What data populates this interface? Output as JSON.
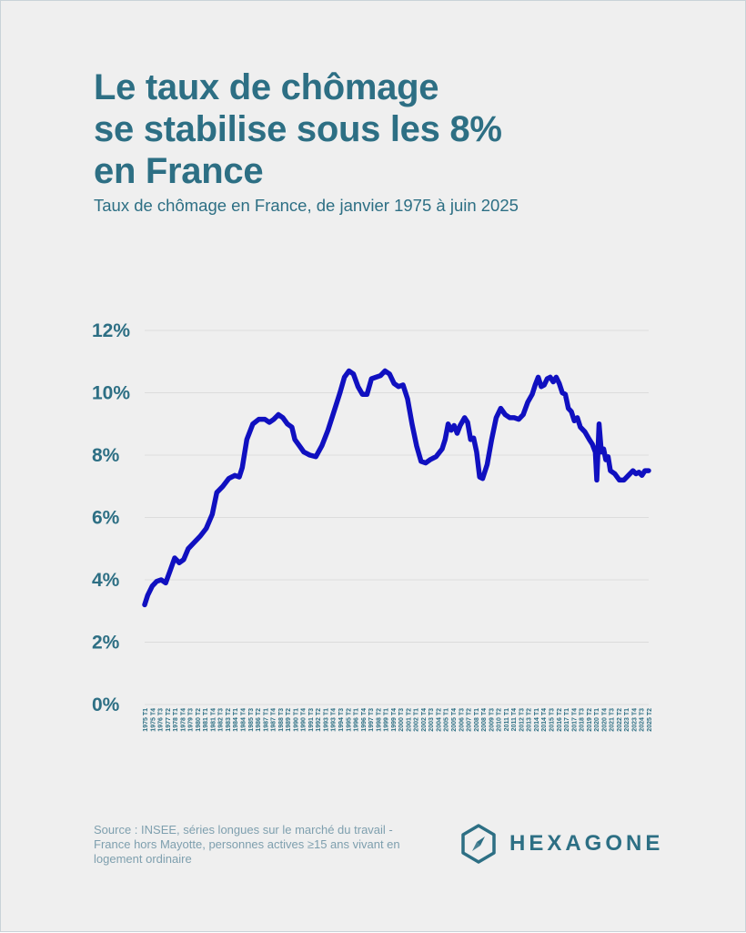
{
  "header": {
    "title_lines": [
      "Le taux de chômage",
      "se stabilise sous les 8%",
      "en France"
    ],
    "subtitle": "Taux de chômage en France, de janvier 1975 à juin 2025"
  },
  "footer": {
    "source_lines": [
      "Source : INSEE, séries longues sur le marché du travail -",
      "France hors Mayotte, personnes actives ≥15 ans vivant en",
      "logement ordinaire"
    ],
    "brand": "HEXAGONE"
  },
  "colors": {
    "title": "#2d6f84",
    "line": "#1010c0",
    "background": "#efefef",
    "source": "#7e9fae"
  },
  "chart_data": {
    "type": "line",
    "title": "",
    "xlabel": "",
    "ylabel": "",
    "ylim": [
      0,
      12
    ],
    "yticks": [
      0,
      2,
      4,
      6,
      8,
      10,
      12
    ],
    "ytick_suffix": "%",
    "grid": "horizontal",
    "x_labels": [
      "1975 T1",
      "1975 T4",
      "1976 T3",
      "1977 T2",
      "1978 T1",
      "1978 T4",
      "1979 T3",
      "1980 T2",
      "1981 T1",
      "1981 T4",
      "1982 T3",
      "1983 T2",
      "1984 T1",
      "1984 T4",
      "1985 T3",
      "1986 T2",
      "1987 T1",
      "1987 T4",
      "1988 T3",
      "1989 T2",
      "1990 T1",
      "1990 T4",
      "1991 T3",
      "1992 T2",
      "1993 T1",
      "1993 T4",
      "1994 T3",
      "1995 T2",
      "1996 T1",
      "1996 T4",
      "1997 T3",
      "1998 T2",
      "1999 T1",
      "1999 T4",
      "2000 T3",
      "2001 T2",
      "2002 T1",
      "2002 T4",
      "2003 T3",
      "2004 T2",
      "2005 T1",
      "2005 T4",
      "2006 T3",
      "2007 T2",
      "2008 T1",
      "2008 T4",
      "2009 T3",
      "2010 T2",
      "2011 T1",
      "2011 T4",
      "2012 T3",
      "2013 T2",
      "2014 T1",
      "2014 T4",
      "2015 T3",
      "2016 T2",
      "2017 T1",
      "2017 T4",
      "2018 T3",
      "2019 T2",
      "2020 T1",
      "2020 T4",
      "2021 T3",
      "2022 T2",
      "2023 T1",
      "2023 T4",
      "2024 T3",
      "2025 T2"
    ],
    "series": [
      {
        "values": [
          [
            1975.0,
            3.2
          ],
          [
            1975.2,
            3.5
          ],
          [
            1975.5,
            3.8
          ],
          [
            1975.8,
            3.95
          ],
          [
            1976.1,
            4.0
          ],
          [
            1976.4,
            3.9
          ],
          [
            1976.7,
            4.3
          ],
          [
            1977.0,
            4.7
          ],
          [
            1977.3,
            4.55
          ],
          [
            1977.6,
            4.65
          ],
          [
            1977.9,
            5.0
          ],
          [
            1978.3,
            5.2
          ],
          [
            1978.7,
            5.4
          ],
          [
            1979.1,
            5.65
          ],
          [
            1979.5,
            6.1
          ],
          [
            1979.8,
            6.8
          ],
          [
            1980.2,
            7.0
          ],
          [
            1980.6,
            7.25
          ],
          [
            1981.0,
            7.35
          ],
          [
            1981.3,
            7.3
          ],
          [
            1981.5,
            7.6
          ],
          [
            1981.8,
            8.5
          ],
          [
            1982.2,
            9.0
          ],
          [
            1982.6,
            9.15
          ],
          [
            1983.0,
            9.15
          ],
          [
            1983.3,
            9.05
          ],
          [
            1983.6,
            9.15
          ],
          [
            1983.9,
            9.3
          ],
          [
            1984.2,
            9.2
          ],
          [
            1984.5,
            9.0
          ],
          [
            1984.8,
            8.9
          ],
          [
            1985.0,
            8.5
          ],
          [
            1985.3,
            8.3
          ],
          [
            1985.6,
            8.1
          ],
          [
            1986.0,
            8.0
          ],
          [
            1986.4,
            7.95
          ],
          [
            1986.8,
            8.3
          ],
          [
            1987.2,
            8.8
          ],
          [
            1987.6,
            9.4
          ],
          [
            1988.0,
            10.0
          ],
          [
            1988.3,
            10.5
          ],
          [
            1988.6,
            10.7
          ],
          [
            1988.9,
            10.6
          ],
          [
            1989.2,
            10.2
          ],
          [
            1989.5,
            9.95
          ],
          [
            1989.8,
            9.95
          ],
          [
            1990.1,
            10.45
          ],
          [
            1990.4,
            10.5
          ],
          [
            1990.7,
            10.55
          ],
          [
            1991.0,
            10.7
          ],
          [
            1991.3,
            10.6
          ],
          [
            1991.6,
            10.3
          ],
          [
            1991.9,
            10.2
          ],
          [
            1992.2,
            10.25
          ],
          [
            1992.5,
            9.8
          ],
          [
            1992.8,
            9.0
          ],
          [
            1993.1,
            8.3
          ],
          [
            1993.4,
            7.8
          ],
          [
            1993.7,
            7.75
          ],
          [
            1994.0,
            7.85
          ],
          [
            1994.4,
            7.95
          ],
          [
            1994.8,
            8.2
          ],
          [
            1995.0,
            8.5
          ],
          [
            1995.2,
            9.0
          ],
          [
            1995.4,
            8.8
          ],
          [
            1995.6,
            8.95
          ],
          [
            1995.8,
            8.7
          ],
          [
            1996.0,
            8.95
          ],
          [
            1996.3,
            9.2
          ],
          [
            1996.5,
            9.05
          ],
          [
            1996.7,
            8.5
          ],
          [
            1996.9,
            8.55
          ],
          [
            1997.1,
            8.1
          ],
          [
            1997.3,
            7.3
          ],
          [
            1997.5,
            7.25
          ],
          [
            1997.8,
            7.7
          ],
          [
            1998.1,
            8.5
          ],
          [
            1998.4,
            9.2
          ],
          [
            1998.7,
            9.5
          ],
          [
            1999.0,
            9.3
          ],
          [
            1999.3,
            9.2
          ],
          [
            1999.6,
            9.2
          ],
          [
            1999.9,
            9.15
          ],
          [
            2000.2,
            9.3
          ],
          [
            2000.5,
            9.7
          ],
          [
            2000.8,
            9.95
          ],
          [
            2001.0,
            10.25
          ],
          [
            2001.2,
            10.5
          ],
          [
            2001.4,
            10.2
          ],
          [
            2001.6,
            10.25
          ],
          [
            2001.8,
            10.45
          ],
          [
            2002.0,
            10.5
          ],
          [
            2002.2,
            10.35
          ],
          [
            2002.4,
            10.5
          ],
          [
            2002.6,
            10.3
          ],
          [
            2002.8,
            10.0
          ],
          [
            2003.0,
            9.95
          ],
          [
            2003.2,
            9.5
          ],
          [
            2003.4,
            9.4
          ],
          [
            2003.6,
            9.1
          ],
          [
            2003.8,
            9.2
          ],
          [
            2004.0,
            8.9
          ],
          [
            2004.3,
            8.75
          ],
          [
            2004.6,
            8.5
          ],
          [
            2004.8,
            8.35
          ],
          [
            2005.0,
            8.1
          ],
          [
            2005.1,
            7.2
          ],
          [
            2005.25,
            9.0
          ],
          [
            2005.4,
            8.1
          ],
          [
            2005.55,
            8.2
          ],
          [
            2005.7,
            7.85
          ],
          [
            2005.85,
            7.95
          ],
          [
            2006.0,
            7.5
          ],
          [
            2006.3,
            7.4
          ],
          [
            2006.6,
            7.2
          ],
          [
            2006.9,
            7.2
          ],
          [
            2007.2,
            7.35
          ],
          [
            2007.5,
            7.5
          ],
          [
            2007.7,
            7.4
          ],
          [
            2007.9,
            7.45
          ],
          [
            2008.1,
            7.35
          ],
          [
            2008.3,
            7.5
          ],
          [
            2008.55,
            7.5
          ]
        ]
      }
    ],
    "x_data_range": [
      1975.0,
      2008.55
    ]
  }
}
